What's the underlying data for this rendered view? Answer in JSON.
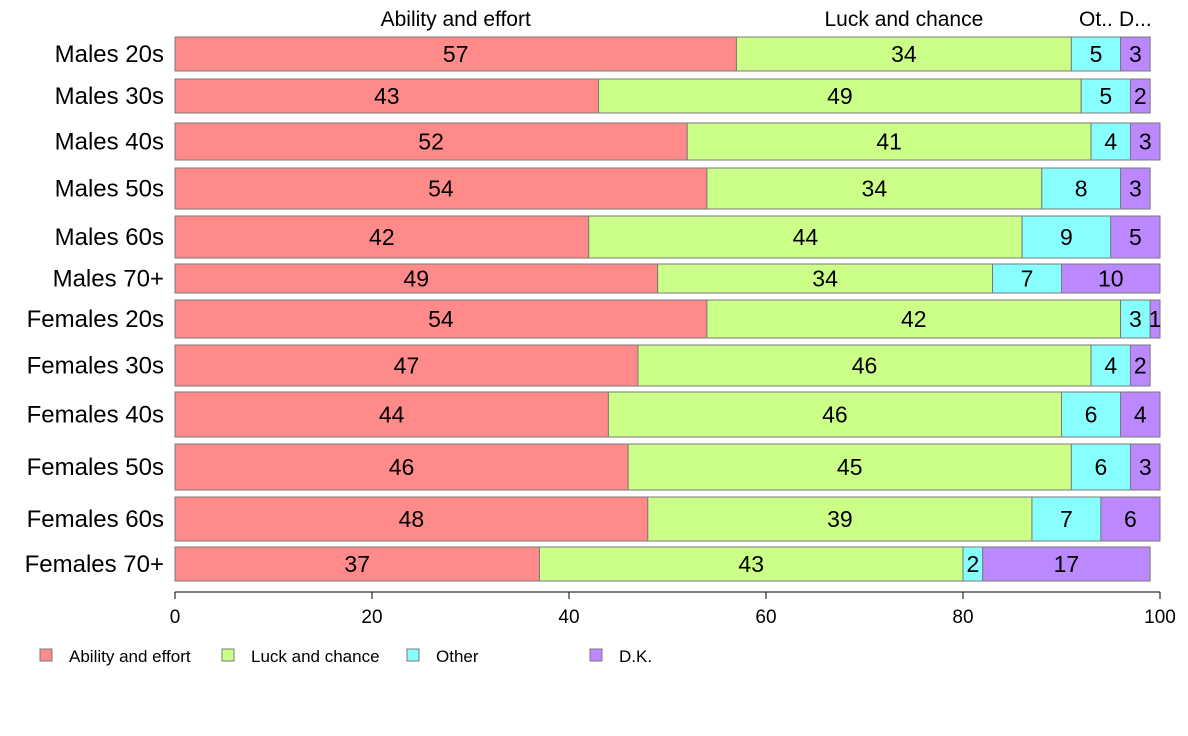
{
  "chart_data": {
    "type": "bar",
    "orientation": "horizontal",
    "stacked": true,
    "categories": [
      "Males 20s",
      "Males 30s",
      "Males 40s",
      "Males 50s",
      "Males 60s",
      "Males 70+",
      "Females 20s",
      "Females 30s",
      "Females 40s",
      "Females 50s",
      "Females 60s",
      "Females 70+"
    ],
    "series": [
      {
        "name": "Ability and effort",
        "color": "#ff8a8a",
        "values": [
          57,
          43,
          52,
          54,
          42,
          49,
          54,
          47,
          44,
          46,
          48,
          37
        ]
      },
      {
        "name": "Luck and chance",
        "color": "#ccff88",
        "values": [
          34,
          49,
          41,
          34,
          44,
          34,
          42,
          46,
          46,
          45,
          39,
          43
        ]
      },
      {
        "name": "Other",
        "color": "#88ffff",
        "values": [
          5,
          5,
          4,
          8,
          9,
          7,
          3,
          4,
          6,
          6,
          7,
          2
        ]
      },
      {
        "name": "D.K.",
        "color": "#bb88ff",
        "values": [
          3,
          2,
          3,
          3,
          5,
          10,
          1,
          2,
          4,
          3,
          6,
          17
        ]
      }
    ],
    "top_labels": [
      "Ability and effort",
      "Luck and chance",
      "Ot..",
      "D..."
    ],
    "xlim": [
      0,
      100
    ],
    "xticks": [
      0,
      20,
      40,
      60,
      80,
      100
    ],
    "legend_position": "bottom-left",
    "grid": false
  }
}
